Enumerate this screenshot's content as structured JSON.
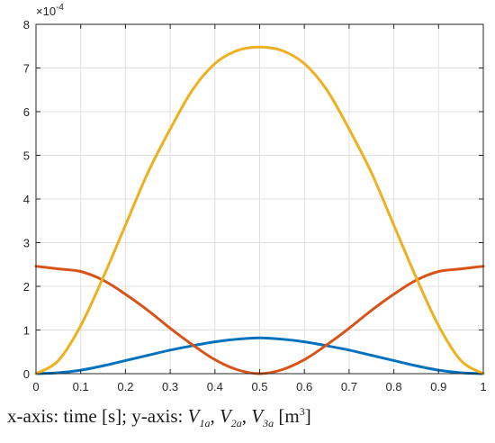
{
  "chart_data": {
    "type": "line",
    "title": "",
    "xlabel": "",
    "ylabel": "",
    "xlim": [
      0,
      1
    ],
    "ylim": [
      0,
      8
    ],
    "y_exponent_label": "×10",
    "y_exponent_power": "-4",
    "x_ticks": [
      "0",
      "0.1",
      "0.2",
      "0.3",
      "0.4",
      "0.5",
      "0.6",
      "0.7",
      "0.8",
      "0.9",
      "1"
    ],
    "y_ticks": [
      "0",
      "1",
      "2",
      "3",
      "4",
      "5",
      "6",
      "7",
      "8"
    ],
    "grid": true,
    "x": [
      0,
      0.05,
      0.1,
      0.15,
      0.2,
      0.25,
      0.3,
      0.35,
      0.4,
      0.45,
      0.5,
      0.55,
      0.6,
      0.65,
      0.7,
      0.75,
      0.8,
      0.85,
      0.9,
      0.95,
      1
    ],
    "series": [
      {
        "color": "#0072BD",
        "values": [
          0.0,
          0.02,
          0.08,
          0.18,
          0.3,
          0.42,
          0.54,
          0.64,
          0.73,
          0.79,
          0.82,
          0.79,
          0.73,
          0.64,
          0.54,
          0.42,
          0.3,
          0.18,
          0.08,
          0.02,
          0.0
        ]
      },
      {
        "color": "#D95319",
        "values": [
          2.46,
          2.4,
          2.34,
          2.14,
          1.82,
          1.45,
          1.04,
          0.66,
          0.32,
          0.09,
          0.0,
          0.09,
          0.32,
          0.66,
          1.04,
          1.45,
          1.82,
          2.14,
          2.34,
          2.4,
          2.46
        ]
      },
      {
        "color": "#EDB120",
        "values": [
          0.0,
          0.3,
          1.1,
          2.2,
          3.4,
          4.6,
          5.6,
          6.5,
          7.1,
          7.4,
          7.48,
          7.4,
          7.1,
          6.5,
          5.6,
          4.6,
          3.4,
          2.2,
          1.1,
          0.3,
          0.0
        ]
      }
    ]
  },
  "caption": {
    "prefix": "x-axis: time [s]; y-axis: ",
    "v1": "V",
    "v1_sub": "1a",
    "sep1": ", ",
    "v2": "V",
    "v2_sub": "2a",
    "sep2": ", ",
    "v3": "V",
    "v3_sub": "3a",
    "unit_open": " [m",
    "unit_sup": "3",
    "unit_close": "]"
  }
}
